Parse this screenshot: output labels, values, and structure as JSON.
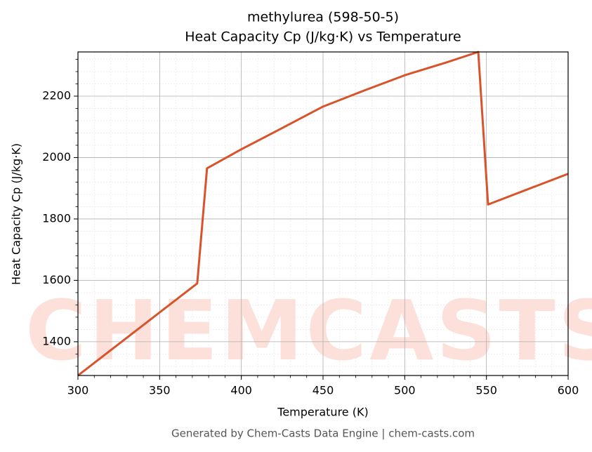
{
  "chart_data": {
    "type": "line",
    "title": "methylurea (598-50-5)",
    "subtitle": "Heat Capacity Cp (J/kg·K) vs Temperature",
    "x_label": "Temperature (K)",
    "y_label": "Heat Capacity Cp (J/kg·K)",
    "footer": "Generated by Chem-Casts Data Engine | chem-casts.com",
    "watermark": "CHEMCASTS",
    "x": [
      300,
      373,
      379,
      400,
      425,
      450,
      475,
      500,
      525,
      545,
      551,
      600
    ],
    "series": [
      {
        "name": "Cp",
        "color": "#d9532a",
        "values": [
          1290,
          1590,
          1965,
          2027,
          2096,
          2166,
          2218,
          2268,
          2309,
          2344,
          1847,
          1947
        ]
      }
    ],
    "xlim": [
      300,
      600
    ],
    "ylim": [
      1290,
      2344
    ],
    "xticks": [
      300,
      350,
      400,
      450,
      500,
      550,
      600
    ],
    "yticks": [
      1400,
      1600,
      1800,
      2000,
      2200
    ],
    "grid": true
  }
}
